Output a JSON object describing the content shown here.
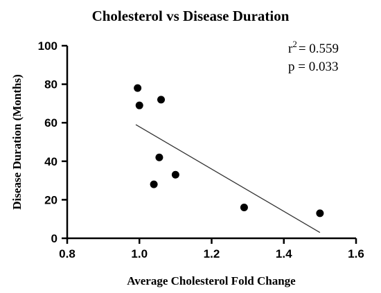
{
  "chart_data": {
    "type": "scatter",
    "title": "Cholesterol vs Disease Duration",
    "xlabel": "Average Cholesterol Fold Change",
    "ylabel": "Disease Duration (Months)",
    "xlim": [
      0.8,
      1.6
    ],
    "ylim": [
      0,
      100
    ],
    "xticks": [
      0.8,
      1.0,
      1.2,
      1.4,
      1.6
    ],
    "xtick_labels": [
      "0.8",
      "1.0",
      "1.2",
      "1.4",
      "1.6"
    ],
    "yticks": [
      0,
      20,
      40,
      60,
      80,
      100
    ],
    "ytick_labels": [
      "0",
      "20",
      "40",
      "60",
      "80",
      "100"
    ],
    "grid": false,
    "points": [
      {
        "x": 0.995,
        "y": 78
      },
      {
        "x": 1.0,
        "y": 69
      },
      {
        "x": 1.06,
        "y": 72
      },
      {
        "x": 1.055,
        "y": 42
      },
      {
        "x": 1.04,
        "y": 28
      },
      {
        "x": 1.1,
        "y": 33
      },
      {
        "x": 1.29,
        "y": 16
      },
      {
        "x": 1.5,
        "y": 13
      }
    ],
    "trendline": {
      "x": [
        0.99,
        1.5
      ],
      "y": [
        59,
        3
      ]
    },
    "annotations": {
      "r2_label": "r",
      "r2_sup": "2",
      "r2_value": "= 0.559",
      "p_text": "p = 0.033"
    },
    "colors": {
      "marker": "#000000",
      "line": "#333333",
      "axis": "#000000"
    }
  }
}
